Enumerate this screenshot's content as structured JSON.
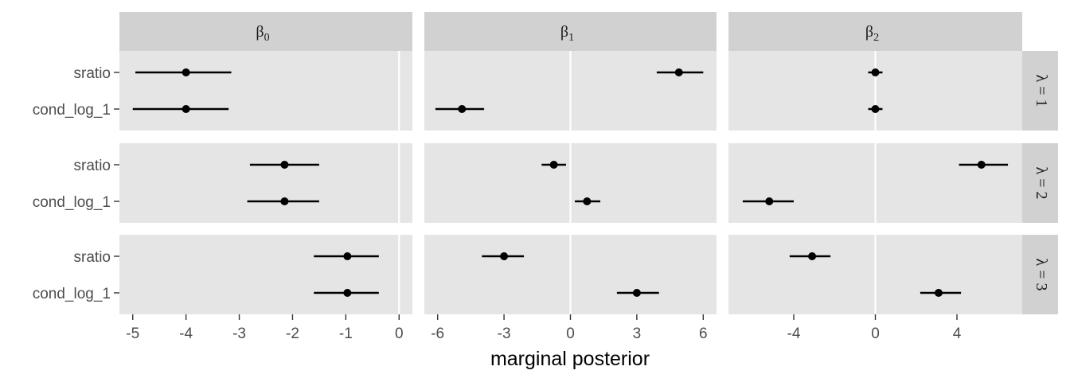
{
  "chart_data": {
    "type": "pointrange",
    "xlabel": "marginal posterior",
    "row_categories": [
      "sratio",
      "cond_log_1"
    ],
    "column_facets": [
      {
        "label": "β",
        "sub": "0",
        "xlim": [
          -5.25,
          0.25
        ],
        "ticks": [
          -5,
          -4,
          -3,
          -2,
          -1,
          0
        ]
      },
      {
        "label": "β",
        "sub": "1",
        "xlim": [
          -6.6,
          6.6
        ],
        "ticks": [
          -6,
          -3,
          0,
          3,
          6
        ]
      },
      {
        "label": "β",
        "sub": "2",
        "xlim": [
          -7.2,
          7.2
        ],
        "ticks": [
          -4,
          0,
          4
        ]
      }
    ],
    "row_facets": [
      "λ = 1",
      "λ = 2",
      "λ = 3"
    ],
    "panels": [
      {
        "row": 0,
        "col": 0,
        "points": [
          {
            "category": "sratio",
            "estimate": -4.0,
            "lower": -4.95,
            "upper": -3.15
          },
          {
            "category": "cond_log_1",
            "estimate": -4.0,
            "lower": -5.0,
            "upper": -3.2
          }
        ]
      },
      {
        "row": 0,
        "col": 1,
        "points": [
          {
            "category": "sratio",
            "estimate": 4.9,
            "lower": 3.9,
            "upper": 6.0
          },
          {
            "category": "cond_log_1",
            "estimate": -4.9,
            "lower": -6.1,
            "upper": -3.9
          }
        ]
      },
      {
        "row": 0,
        "col": 2,
        "points": [
          {
            "category": "sratio",
            "estimate": 0.0,
            "lower": -0.35,
            "upper": 0.35
          },
          {
            "category": "cond_log_1",
            "estimate": 0.0,
            "lower": -0.35,
            "upper": 0.35
          }
        ]
      },
      {
        "row": 1,
        "col": 0,
        "points": [
          {
            "category": "sratio",
            "estimate": -2.15,
            "lower": -2.8,
            "upper": -1.5
          },
          {
            "category": "cond_log_1",
            "estimate": -2.15,
            "lower": -2.85,
            "upper": -1.5
          }
        ]
      },
      {
        "row": 1,
        "col": 1,
        "points": [
          {
            "category": "sratio",
            "estimate": -0.75,
            "lower": -1.3,
            "upper": -0.2
          },
          {
            "category": "cond_log_1",
            "estimate": 0.75,
            "lower": 0.2,
            "upper": 1.35
          }
        ]
      },
      {
        "row": 1,
        "col": 2,
        "points": [
          {
            "category": "sratio",
            "estimate": 5.2,
            "lower": 4.1,
            "upper": 6.5
          },
          {
            "category": "cond_log_1",
            "estimate": -5.2,
            "lower": -6.5,
            "upper": -4.0
          }
        ]
      },
      {
        "row": 2,
        "col": 0,
        "points": [
          {
            "category": "sratio",
            "estimate": -0.97,
            "lower": -1.6,
            "upper": -0.38
          },
          {
            "category": "cond_log_1",
            "estimate": -0.97,
            "lower": -1.6,
            "upper": -0.38
          }
        ]
      },
      {
        "row": 2,
        "col": 1,
        "points": [
          {
            "category": "sratio",
            "estimate": -3.0,
            "lower": -4.0,
            "upper": -2.1
          },
          {
            "category": "cond_log_1",
            "estimate": 3.0,
            "lower": 2.1,
            "upper": 4.0
          }
        ]
      },
      {
        "row": 2,
        "col": 2,
        "points": [
          {
            "category": "sratio",
            "estimate": -3.1,
            "lower": -4.2,
            "upper": -2.2
          },
          {
            "category": "cond_log_1",
            "estimate": 3.1,
            "lower": 2.2,
            "upper": 4.2
          }
        ]
      }
    ],
    "grid": true,
    "legend": "none"
  }
}
